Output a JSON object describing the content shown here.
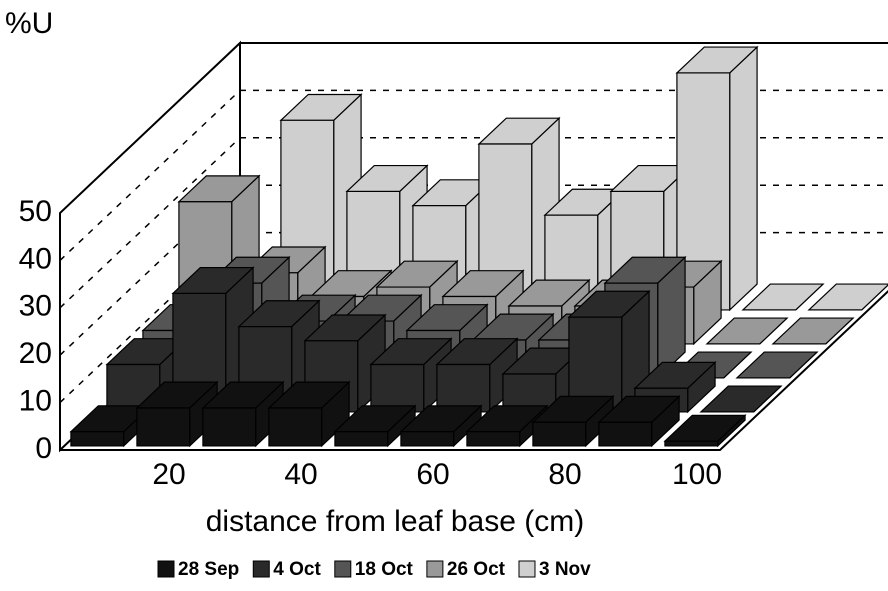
{
  "chart_data": {
    "type": "bar3d",
    "y_label": "%U",
    "x_label": "distance from leaf base (cm)",
    "categories": [
      null,
      20,
      null,
      40,
      null,
      60,
      null,
      80,
      null,
      100
    ],
    "series": [
      {
        "name": "28 Sep",
        "color": "#111111",
        "values": [
          3,
          8,
          8,
          8,
          3,
          3,
          3,
          5,
          5,
          1
        ]
      },
      {
        "name": "4 Oct",
        "color": "#2a2a2a",
        "values": [
          10,
          25,
          18,
          15,
          10,
          10,
          8,
          20,
          5,
          0
        ]
      },
      {
        "name": "18 Oct",
        "color": "#555555",
        "values": [
          10,
          20,
          12,
          12,
          10,
          8,
          8,
          20,
          0,
          0
        ]
      },
      {
        "name": "26 Oct",
        "color": "#999999",
        "values": [
          30,
          15,
          10,
          12,
          10,
          8,
          8,
          12,
          0,
          0
        ]
      },
      {
        "name": "3 Nov",
        "color": "#cfcfcf",
        "values": [
          0,
          40,
          25,
          22,
          35,
          20,
          25,
          50,
          0,
          0
        ]
      }
    ],
    "ylim": [
      0,
      50
    ],
    "yticks": [
      0,
      10,
      20,
      30,
      40,
      50
    ],
    "grid": true
  }
}
